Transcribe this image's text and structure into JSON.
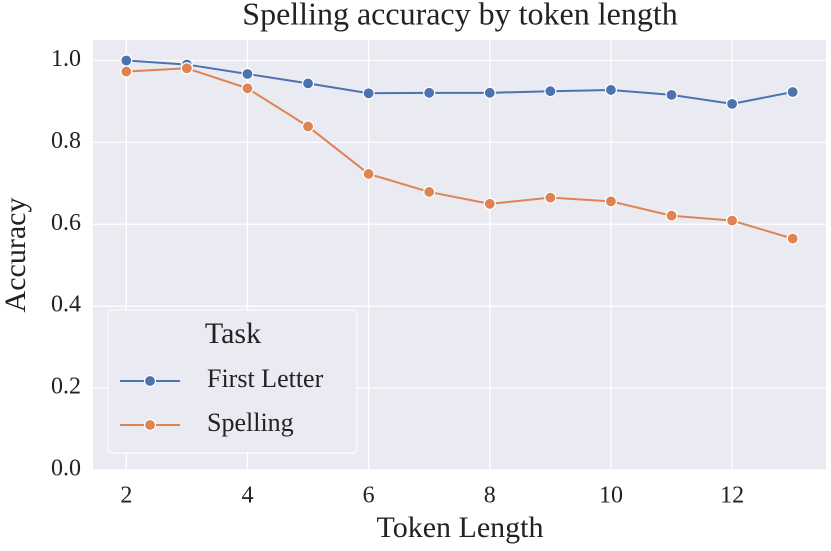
{
  "chart_data": {
    "type": "line",
    "title": "Spelling accuracy by token length",
    "x_label": "Token Length",
    "y_label": "Accuracy",
    "x": [
      2,
      3,
      4,
      5,
      6,
      7,
      8,
      9,
      10,
      11,
      12,
      13
    ],
    "series": [
      {
        "name": "First Letter",
        "color": "#4c72b0",
        "values": [
          1.0,
          0.99,
          0.967,
          0.944,
          0.92,
          0.921,
          0.921,
          0.925,
          0.928,
          0.916,
          0.894,
          0.923
        ]
      },
      {
        "name": "Spelling",
        "color": "#dd8452",
        "values": [
          0.973,
          0.981,
          0.932,
          0.839,
          0.723,
          0.679,
          0.65,
          0.665,
          0.656,
          0.621,
          0.609,
          0.565
        ]
      }
    ],
    "legend_title": "Task",
    "legend_position": "lower left",
    "xlim": [
      1.45,
      13.55
    ],
    "xticks": [
      2,
      4,
      6,
      8,
      10,
      12
    ],
    "ylim": [
      0,
      1.05
    ],
    "yticks": [
      {
        "value": 0,
        "label": "0.0"
      },
      0.2,
      0.4,
      0.6,
      0.8,
      {
        "value": 1,
        "label": "1.0"
      }
    ],
    "grid": true
  }
}
